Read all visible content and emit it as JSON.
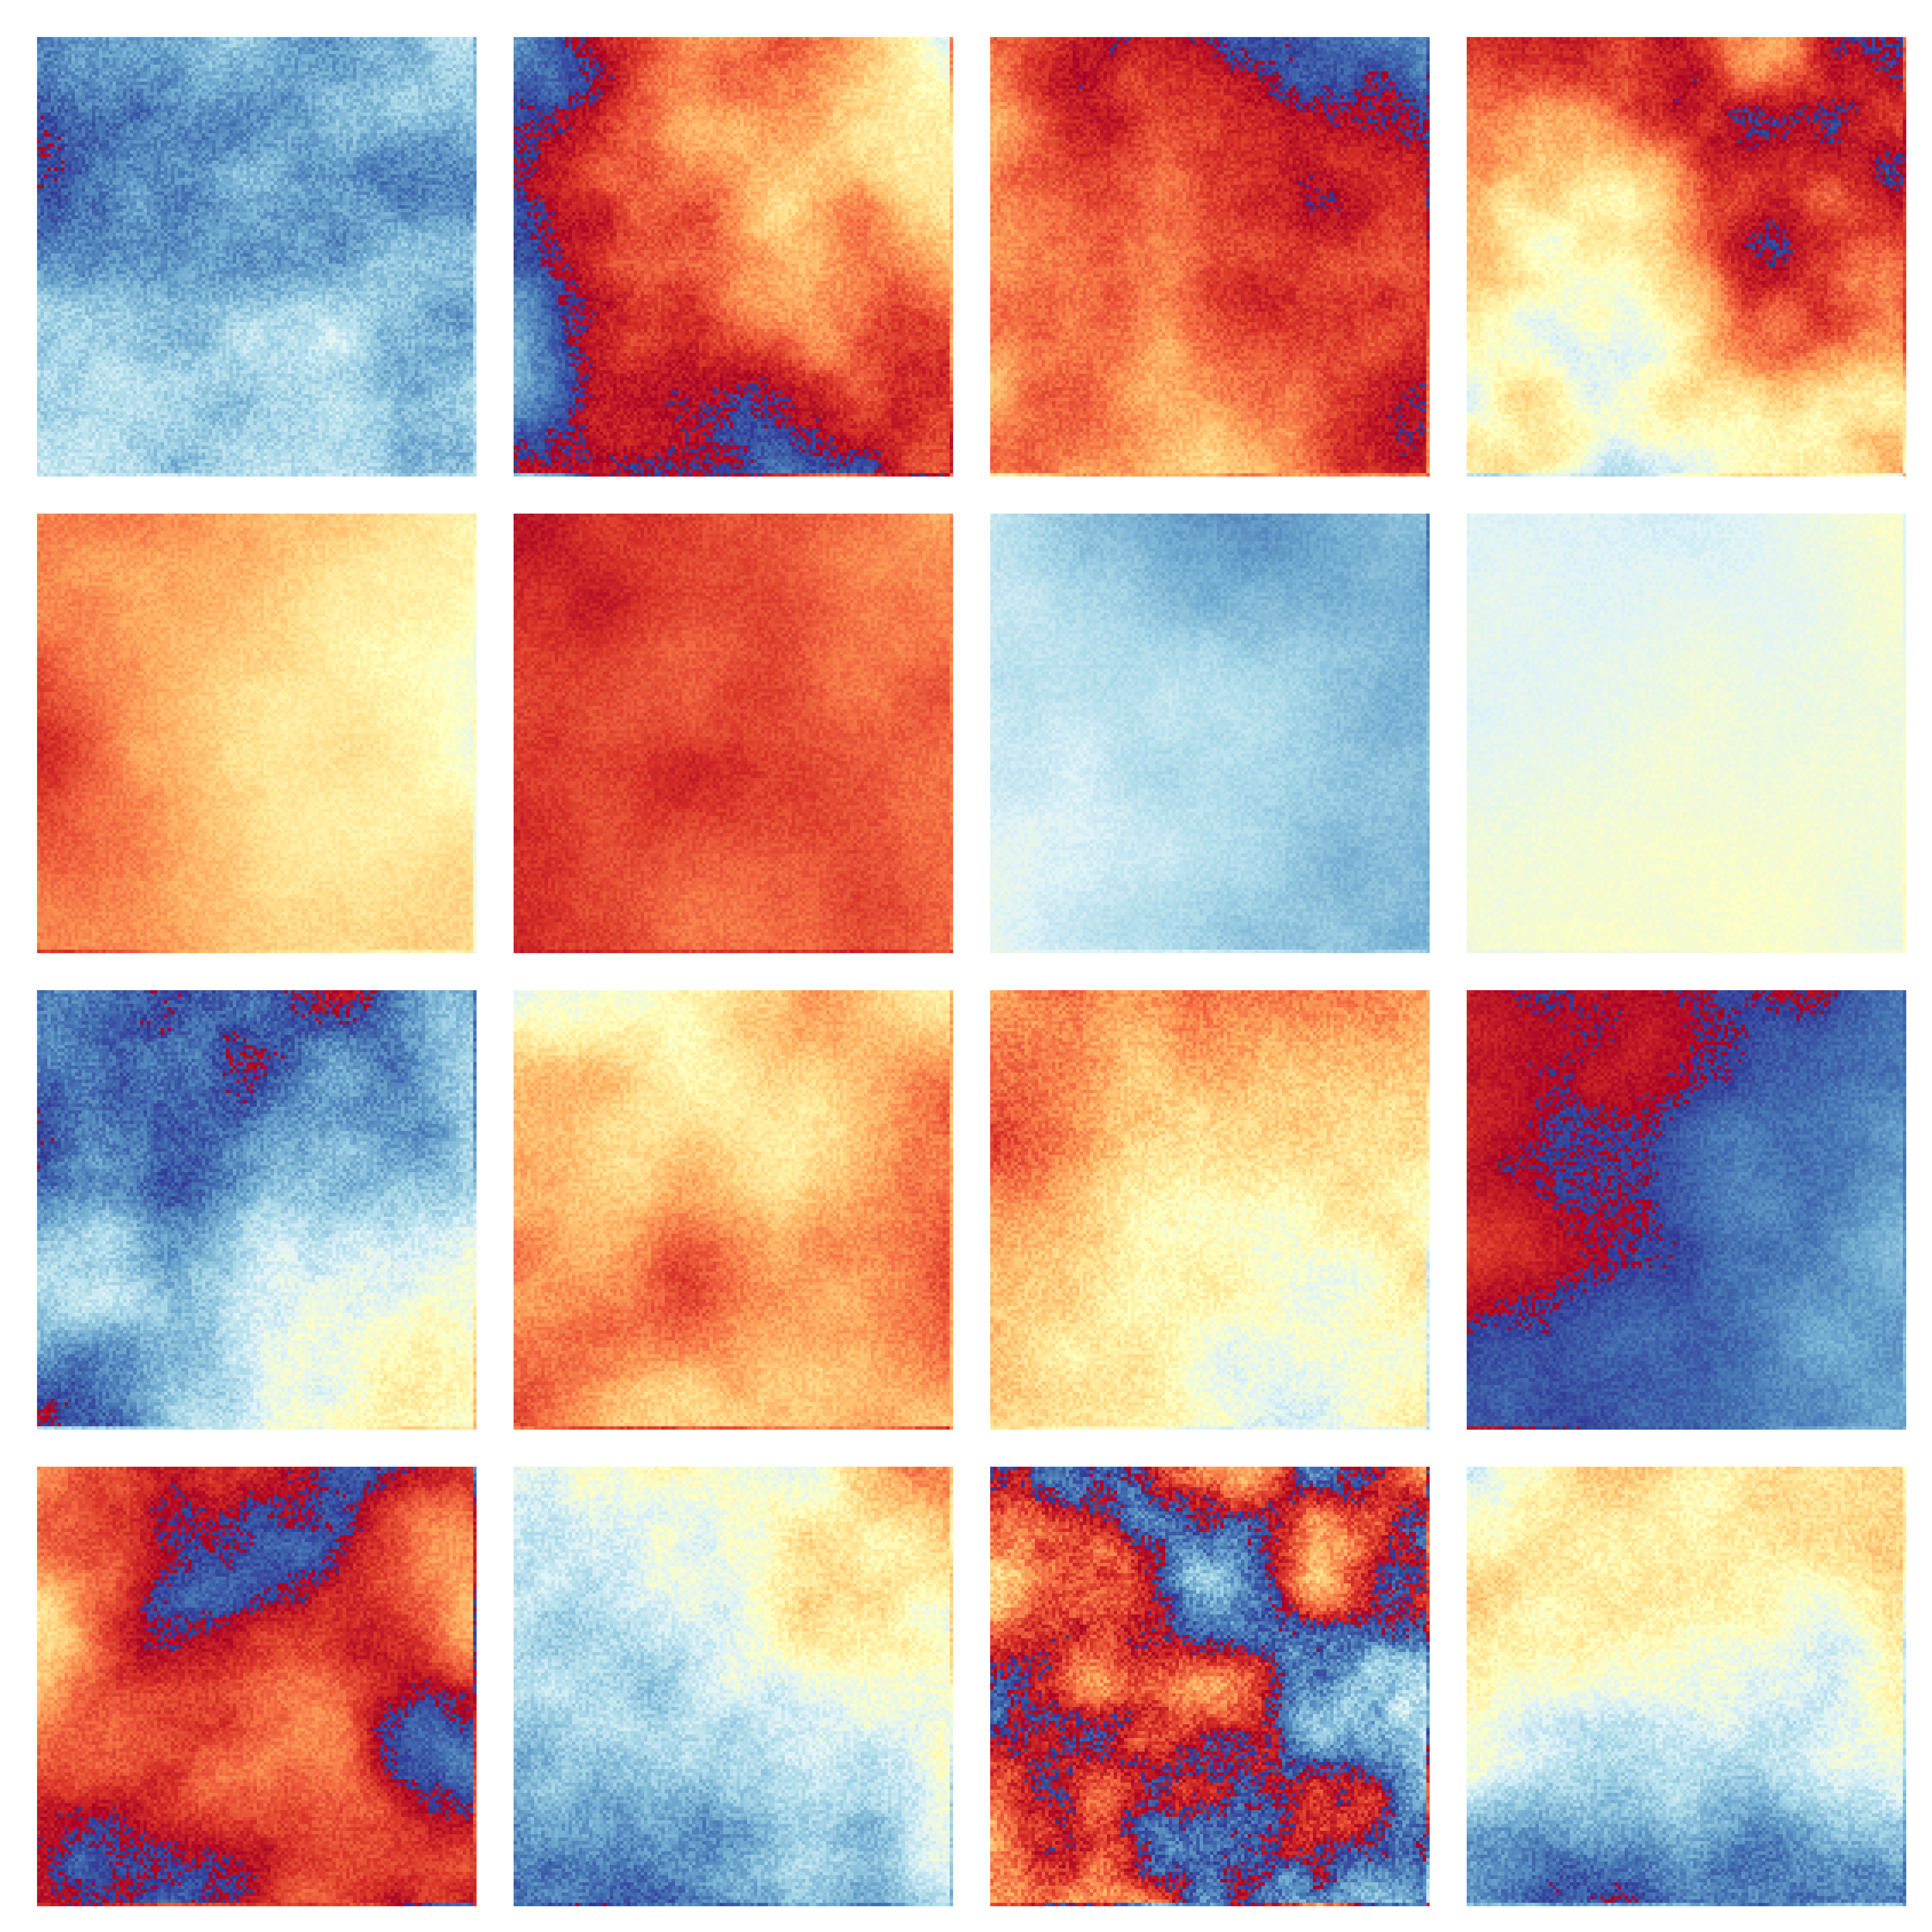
{
  "figure": {
    "rows": 4,
    "cols": 4
  },
  "colormap": {
    "name": "RdYlBu",
    "stops": [
      "#313695",
      "#4575b4",
      "#74add1",
      "#abd9e9",
      "#e0f3f8",
      "#ffffbf",
      "#fee090",
      "#fdae61",
      "#f46d43",
      "#d73027",
      "#a50026"
    ],
    "value_range": [
      0,
      1
    ]
  },
  "chart_data": {
    "type": "heatmap",
    "title": "",
    "xlabel": "",
    "ylabel": "",
    "axes_visible": false,
    "grid": false,
    "legend": "none",
    "resolution": 128,
    "panels": [
      {
        "row": 0,
        "col": 0,
        "base": 0.22,
        "amp": 0.24,
        "grad": [
          0.06,
          0.08
        ],
        "scale": 3.2,
        "wraps": true,
        "noise": 0.05
      },
      {
        "row": 0,
        "col": 1,
        "base": 0.86,
        "amp": 0.34,
        "grad": [
          -0.14,
          0.12
        ],
        "scale": 2.6,
        "wraps": true,
        "noise": 0.04
      },
      {
        "row": 0,
        "col": 2,
        "base": 0.9,
        "amp": 0.3,
        "grad": [
          0.06,
          -0.1
        ],
        "scale": 2.4,
        "wraps": true,
        "noise": 0.04
      },
      {
        "row": 0,
        "col": 3,
        "base": 0.72,
        "amp": 0.42,
        "grad": [
          0.05,
          -0.28
        ],
        "scale": 2.8,
        "wraps": true,
        "noise": 0.04
      },
      {
        "row": 1,
        "col": 0,
        "base": 0.68,
        "amp": 0.18,
        "grad": [
          -0.16,
          0.02
        ],
        "scale": 2.2,
        "wraps": true,
        "noise": 0.03
      },
      {
        "row": 1,
        "col": 1,
        "base": 0.84,
        "amp": 0.14,
        "grad": [
          -0.06,
          0.04
        ],
        "scale": 2.4,
        "wraps": true,
        "noise": 0.03
      },
      {
        "row": 1,
        "col": 2,
        "base": 0.26,
        "amp": 0.12,
        "grad": [
          -0.08,
          0.04
        ],
        "scale": 2.4,
        "wraps": false,
        "noise": 0.025
      },
      {
        "row": 1,
        "col": 3,
        "base": 0.44,
        "amp": 0.06,
        "grad": [
          0.02,
          0.02
        ],
        "scale": 2.2,
        "wraps": false,
        "noise": 0.02
      },
      {
        "row": 2,
        "col": 0,
        "base": 0.22,
        "amp": 0.3,
        "grad": [
          0.1,
          0.1
        ],
        "scale": 2.8,
        "wraps": true,
        "noise": 0.05
      },
      {
        "row": 2,
        "col": 1,
        "base": 0.68,
        "amp": 0.26,
        "grad": [
          0.04,
          0.04
        ],
        "scale": 2.6,
        "wraps": true,
        "noise": 0.04
      },
      {
        "row": 2,
        "col": 2,
        "base": 0.62,
        "amp": 0.2,
        "grad": [
          -0.08,
          -0.12
        ],
        "scale": 2.8,
        "wraps": false,
        "noise": 0.05
      },
      {
        "row": 2,
        "col": 3,
        "base": 0.08,
        "amp": 0.16,
        "grad": [
          0.1,
          0.02
        ],
        "scale": 2.4,
        "wraps": true,
        "noise": 0.03
      },
      {
        "row": 3,
        "col": 0,
        "base": 0.92,
        "amp": 0.36,
        "grad": [
          0.04,
          0.06
        ],
        "scale": 2.6,
        "wraps": true,
        "noise": 0.04
      },
      {
        "row": 3,
        "col": 1,
        "base": 0.38,
        "amp": 0.3,
        "grad": [
          0.1,
          -0.26
        ],
        "scale": 3.0,
        "wraps": true,
        "noise": 0.05
      },
      {
        "row": 3,
        "col": 2,
        "base": 0.98,
        "amp": 0.52,
        "grad": [
          0.02,
          0.02
        ],
        "scale": 4.0,
        "wraps": true,
        "noise": 0.07
      },
      {
        "row": 3,
        "col": 3,
        "base": 0.4,
        "amp": 0.28,
        "grad": [
          0.02,
          -0.24
        ],
        "scale": 3.0,
        "wraps": true,
        "noise": 0.05
      }
    ]
  }
}
